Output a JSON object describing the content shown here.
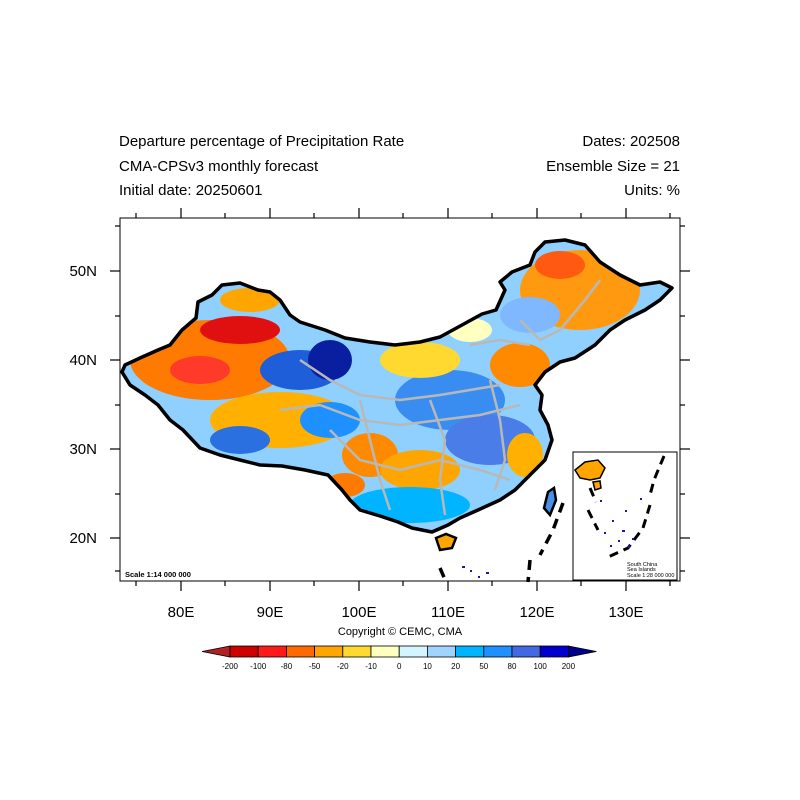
{
  "header": {
    "title": "Departure percentage of Precipitation Rate",
    "model": "CMA-CPSv3 monthly forecast",
    "initial_date": "Initial date: 20250601",
    "dates": "Dates: 202508",
    "ensemble": "Ensemble Size = 21",
    "units": "Units: %"
  },
  "axes": {
    "lon_labels": [
      "80E",
      "90E",
      "100E",
      "110E",
      "120E",
      "130E"
    ],
    "lat_labels": [
      "50N",
      "40N",
      "30N",
      "20N"
    ]
  },
  "map": {
    "scale": "Scale 1:14 000 000",
    "inset": {
      "title_line1": "South China",
      "title_line2": "Sea Islands",
      "scale": "Scale 1:28 000 000"
    }
  },
  "copyright": "Copyright © CEMC, CMA",
  "colorbar": {
    "labels": [
      "-200",
      "-100",
      "-80",
      "-50",
      "-20",
      "-10",
      "0",
      "10",
      "20",
      "50",
      "80",
      "100",
      "200"
    ],
    "colors": [
      "#b22222",
      "#cc0000",
      "#ff1a1a",
      "#ff6a00",
      "#ffa500",
      "#ffd92f",
      "#ffffc0",
      "#d4f5ff",
      "#9fd4ff",
      "#00b4ff",
      "#1e90ff",
      "#4169e1",
      "#0000cd",
      "#00008b"
    ]
  }
}
